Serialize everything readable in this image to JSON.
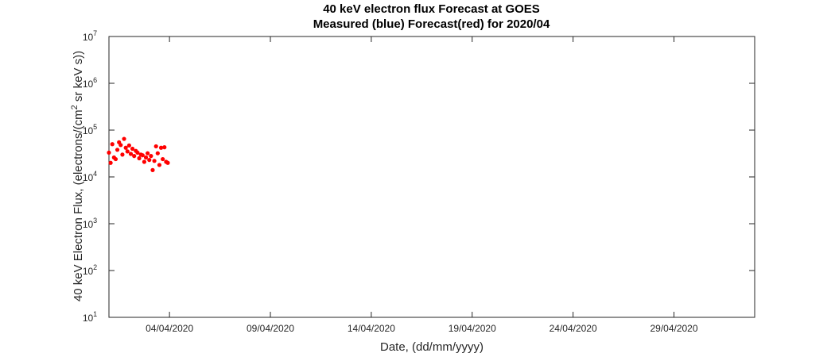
{
  "chart_data": {
    "type": "scatter",
    "title": "40 keV electron flux Forecast at GOES",
    "subtitle": "Measured (blue) Forecast(red) for 2020/04",
    "xlabel": "Date, (dd/mm/yyyy)",
    "ylabel": "40 keV Electron Flux, (electrons/(cm² sr keV s))",
    "y_scale": "log",
    "ylim": [
      10,
      10000000
    ],
    "xlim": [
      "2020-04-01",
      "2020-05-03"
    ],
    "x_ticks": [
      "04/04/2020",
      "09/04/2020",
      "14/04/2020",
      "19/04/2020",
      "24/04/2020",
      "29/04/2020"
    ],
    "y_ticks": [
      "10^1",
      "10^2",
      "10^3",
      "10^4",
      "10^5",
      "10^6",
      "10^7"
    ],
    "grid": false,
    "series": [
      {
        "color": "#ff0000",
        "points": [
          [
            "2020-04-01 00:00",
            33000
          ],
          [
            "2020-04-01 02:00",
            20000
          ],
          [
            "2020-04-01 04:00",
            50000
          ],
          [
            "2020-04-01 06:00",
            26000
          ],
          [
            "2020-04-01 08:00",
            24000
          ],
          [
            "2020-04-01 10:00",
            38000
          ],
          [
            "2020-04-01 12:00",
            55000
          ],
          [
            "2020-04-01 14:00",
            48000
          ],
          [
            "2020-04-01 16:00",
            30000
          ],
          [
            "2020-04-01 18:00",
            65000
          ],
          [
            "2020-04-01 20:00",
            42000
          ],
          [
            "2020-04-01 22:00",
            35000
          ],
          [
            "2020-04-02 00:00",
            47000
          ],
          [
            "2020-04-02 02:00",
            31000
          ],
          [
            "2020-04-02 04:00",
            40000
          ],
          [
            "2020-04-02 06:00",
            28000
          ],
          [
            "2020-04-02 08:00",
            36000
          ],
          [
            "2020-04-02 10:00",
            33000
          ],
          [
            "2020-04-02 12:00",
            25000
          ],
          [
            "2020-04-02 14:00",
            30000
          ],
          [
            "2020-04-02 16:00",
            29000
          ],
          [
            "2020-04-02 18:00",
            21000
          ],
          [
            "2020-04-02 20:00",
            26000
          ],
          [
            "2020-04-02 22:00",
            32000
          ],
          [
            "2020-04-03 00:00",
            23000
          ],
          [
            "2020-04-03 02:00",
            28000
          ],
          [
            "2020-04-03 04:00",
            14000
          ],
          [
            "2020-04-03 06:00",
            22000
          ],
          [
            "2020-04-03 08:00",
            45000
          ],
          [
            "2020-04-03 10:00",
            32000
          ],
          [
            "2020-04-03 12:00",
            18000
          ],
          [
            "2020-04-03 14:00",
            42000
          ],
          [
            "2020-04-03 16:00",
            24000
          ],
          [
            "2020-04-03 18:00",
            43000
          ],
          [
            "2020-04-03 20:00",
            21000
          ],
          [
            "2020-04-03 22:00",
            20000
          ]
        ]
      }
    ]
  }
}
